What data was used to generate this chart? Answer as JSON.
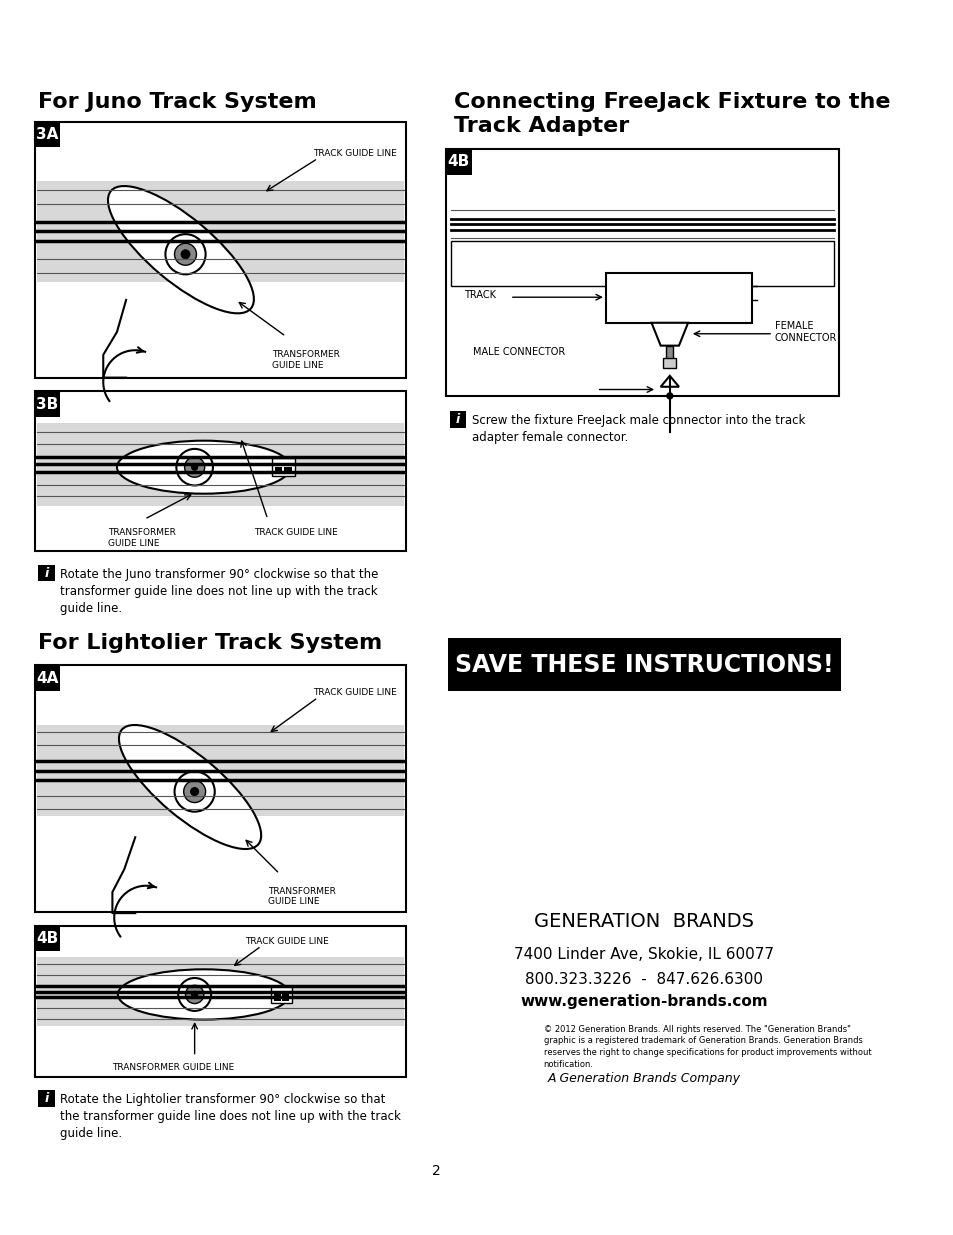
{
  "bg_color": "#ffffff",
  "title_juno": "For Juno Track System",
  "title_lightolier": "For Lightolier Track System",
  "title_freejack": "Connecting FreeJack Fixture to the\nTrack Adapter",
  "save_instructions": "SAVE THESE INSTRUCTIONS!",
  "label_3a": "3A",
  "label_3b": "3B",
  "label_4a": "4A",
  "label_4b_left": "4B",
  "label_4b_right": "4B",
  "track_guide_line": "TRACK GUIDE LINE",
  "transformer_guide_line": "TRANSFORMER\nGUIDE LINE",
  "transformer_guide_line_single": "TRANSFORMER GUIDE LINE",
  "track_label": "TRACK",
  "female_connector": "FEMALE\nCONNECTOR",
  "male_connector": "MALE CONNECTOR",
  "screw_text": "Screw the fixture FreeJack male connector into the track\nadapter female connector.",
  "rotate_juno": "Rotate the Juno transformer 90° clockwise so that the\ntransformer guide line does not line up with the track\nguide line.",
  "rotate_lightolier": "Rotate the Lightolier transformer 90° clockwise so that\nthe transformer guide line does not line up with the track\nguide line.",
  "generation_brands": "GENERATION  BRANDS",
  "address": "7400 Linder Ave, Skokie, IL 60077",
  "phone": "800.323.3226  -  847.626.6300",
  "website": "www.generation-brands.com",
  "copyright": "© 2012 Generation Brands. All rights reserved. The \"Generation Brands\"\ngraphic is a registered trademark of Generation Brands. Generation Brands\nreserves the right to change specifications for product improvements without\nnotification.",
  "company": "A Generation Brands Company",
  "page_num": "2"
}
